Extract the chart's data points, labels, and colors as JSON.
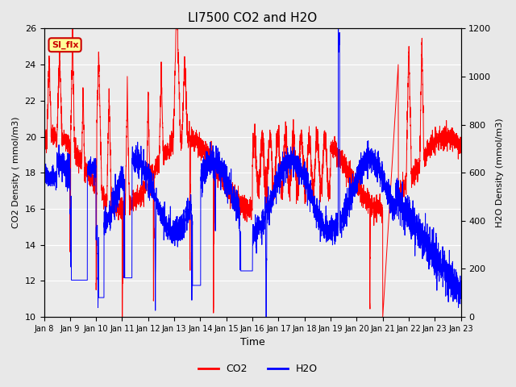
{
  "title": "LI7500 CO2 and H2O",
  "xlabel": "Time",
  "ylabel_left": "CO2 Density ( mmol/m3)",
  "ylabel_right": "H2O Density (mmol/m3)",
  "co2_ylim": [
    10,
    26
  ],
  "h2o_ylim": [
    0,
    1200
  ],
  "co2_color": "#FF0000",
  "h2o_color": "#0000FF",
  "figure_bg": "#E8E8E8",
  "axes_bg": "#EBEBEB",
  "annotation_text": "SI_flx",
  "annotation_color": "#CC0000",
  "annotation_bg": "#FFFF99",
  "x_tick_labels": [
    "Jan 8",
    "Jan 9",
    "Jan 10",
    "Jan 11",
    "Jan 12",
    "Jan 13",
    "Jan 14",
    "Jan 15",
    "Jan 16",
    "Jan 17",
    "Jan 18",
    "Jan 19",
    "Jan 20",
    "Jan 21",
    "Jan 22",
    "Jan 23"
  ],
  "num_days": 16
}
